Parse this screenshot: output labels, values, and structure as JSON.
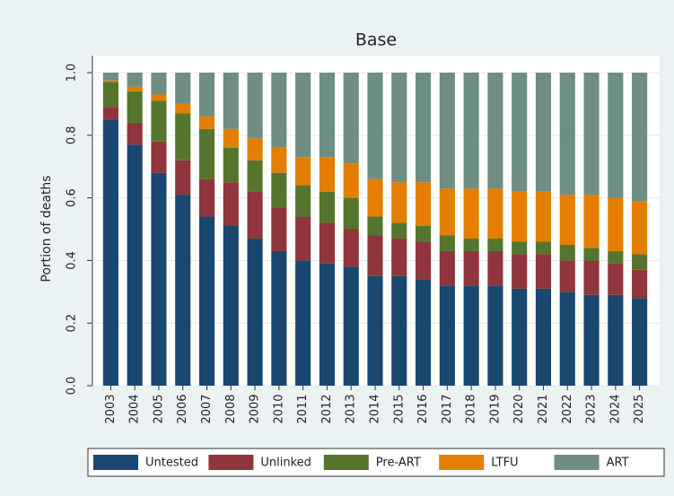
{
  "chart_data": {
    "type": "stacked-bar",
    "title": "Base",
    "y_label": "Portion of deaths",
    "categories": [
      "2003",
      "2004",
      "2005",
      "2006",
      "2007",
      "2008",
      "2009",
      "2010",
      "2011",
      "2012",
      "2013",
      "2014",
      "2015",
      "2016",
      "2017",
      "2018",
      "2019",
      "2020",
      "2021",
      "2022",
      "2023",
      "2024",
      "2025"
    ],
    "series": [
      {
        "name": "Untested",
        "color": "#1a476f",
        "values": [
          0.85,
          0.77,
          0.68,
          0.61,
          0.54,
          0.51,
          0.47,
          0.43,
          0.4,
          0.39,
          0.38,
          0.35,
          0.35,
          0.34,
          0.32,
          0.32,
          0.32,
          0.31,
          0.31,
          0.3,
          0.29,
          0.29,
          0.28
        ]
      },
      {
        "name": "Unlinked",
        "color": "#90353b",
        "values": [
          0.04,
          0.07,
          0.1,
          0.11,
          0.12,
          0.14,
          0.15,
          0.14,
          0.14,
          0.13,
          0.12,
          0.13,
          0.12,
          0.12,
          0.11,
          0.11,
          0.11,
          0.11,
          0.11,
          0.1,
          0.11,
          0.1,
          0.09
        ]
      },
      {
        "name": "Pre-ART",
        "color": "#55752f",
        "values": [
          0.08,
          0.1,
          0.13,
          0.15,
          0.16,
          0.11,
          0.1,
          0.11,
          0.1,
          0.1,
          0.1,
          0.06,
          0.05,
          0.05,
          0.05,
          0.04,
          0.04,
          0.04,
          0.04,
          0.05,
          0.04,
          0.04,
          0.05
        ]
      },
      {
        "name": "LTFU",
        "color": "#e37e00",
        "values": [
          0.005,
          0.015,
          0.02,
          0.03,
          0.04,
          0.06,
          0.07,
          0.08,
          0.09,
          0.11,
          0.11,
          0.12,
          0.13,
          0.14,
          0.15,
          0.16,
          0.16,
          0.16,
          0.16,
          0.16,
          0.17,
          0.17,
          0.17
        ]
      },
      {
        "name": "ART",
        "color": "#6e8e84",
        "values": [
          0.025,
          0.045,
          0.07,
          0.1,
          0.14,
          0.18,
          0.21,
          0.24,
          0.27,
          0.27,
          0.29,
          0.34,
          0.35,
          0.35,
          0.37,
          0.37,
          0.37,
          0.38,
          0.38,
          0.39,
          0.39,
          0.4,
          0.41
        ]
      }
    ],
    "ylim": [
      0,
      1
    ],
    "yticks": [
      {
        "value": 0,
        "label": "0.0"
      },
      0.2,
      0.4,
      0.6,
      0.8,
      {
        "value": 1,
        "label": "1.0"
      }
    ],
    "grid": true,
    "legend": "bottom"
  }
}
